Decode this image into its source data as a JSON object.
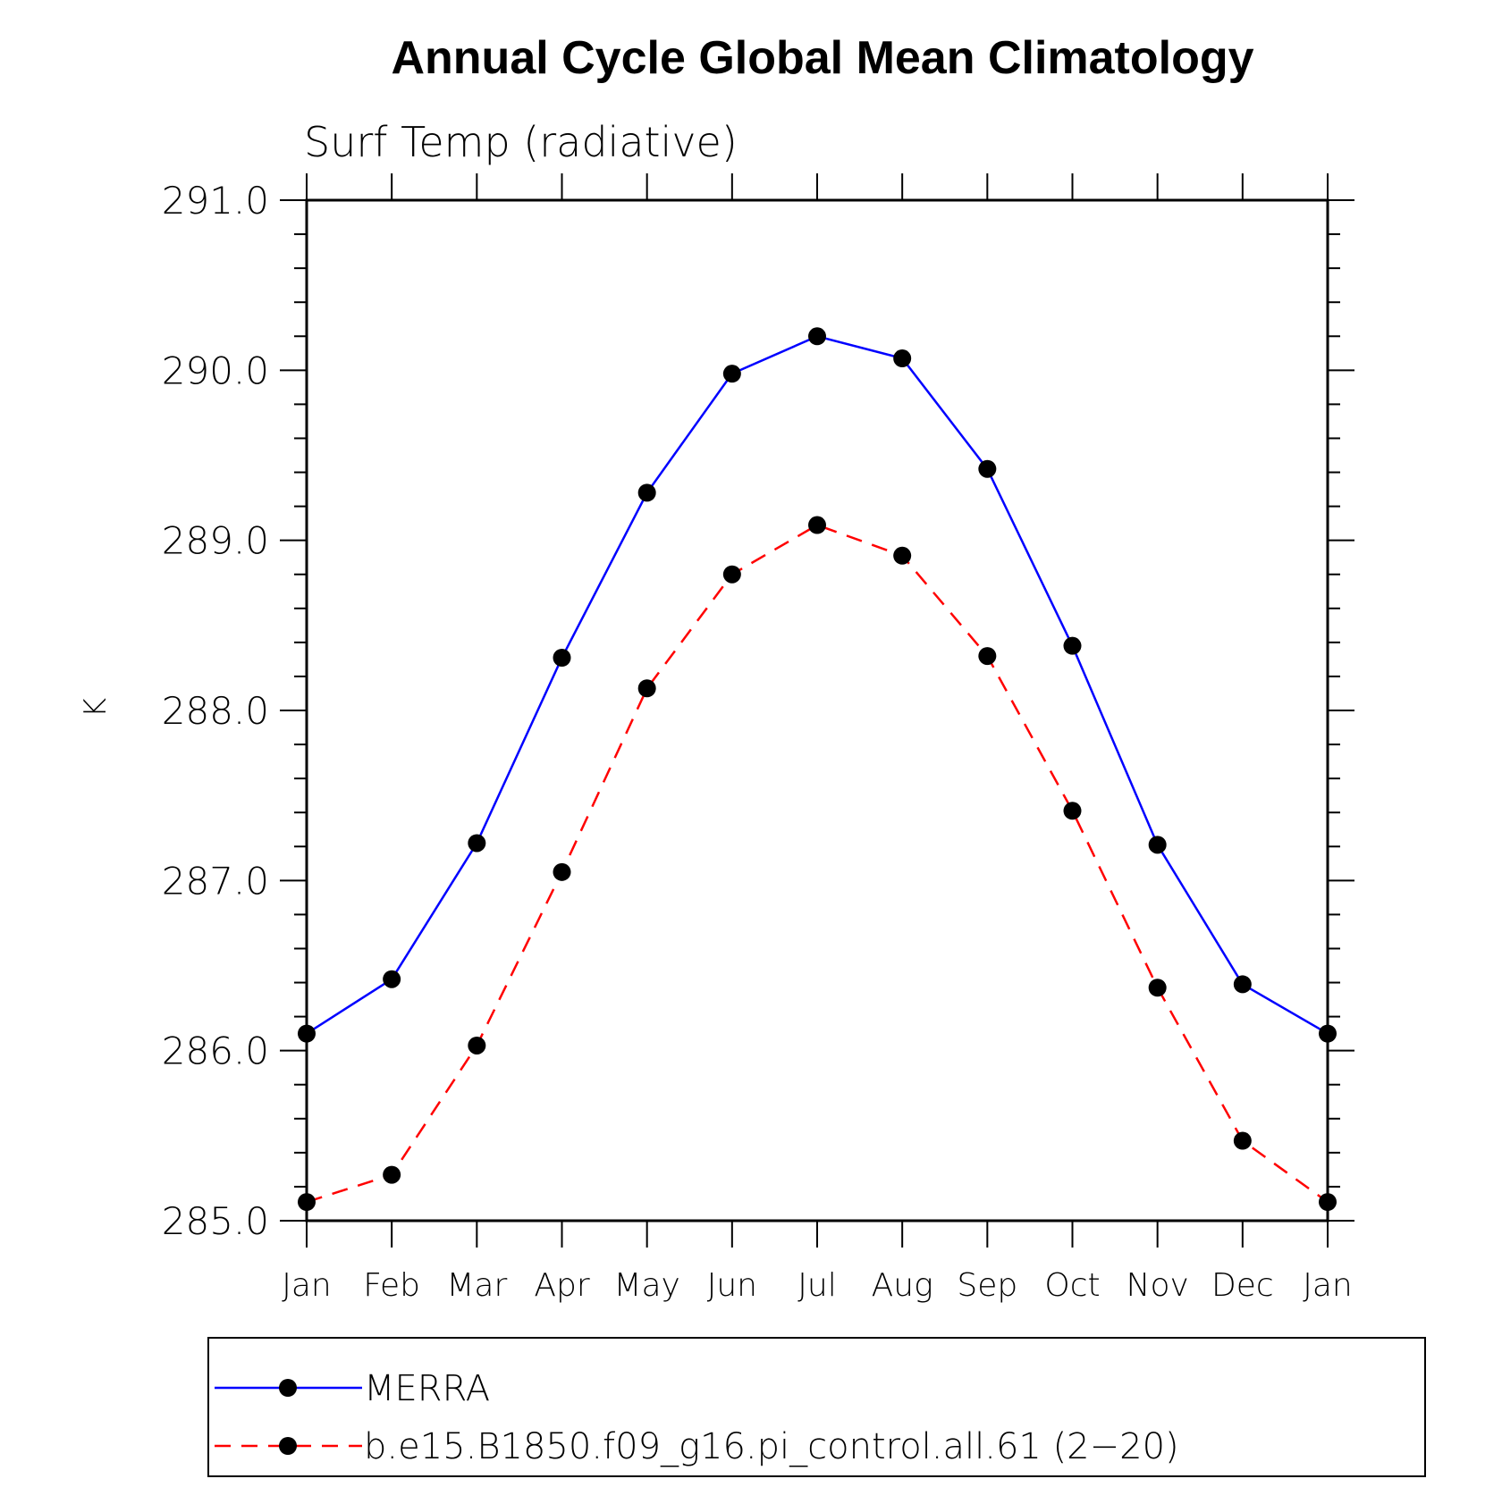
{
  "chart_data": {
    "type": "line",
    "title": "Annual Cycle Global Mean Climatology",
    "subtitle": "Surf Temp (radiative)",
    "ylabel": "K",
    "xlabel": "",
    "categories": [
      "Jan",
      "Feb",
      "Mar",
      "Apr",
      "May",
      "Jun",
      "Jul",
      "Aug",
      "Sep",
      "Oct",
      "Nov",
      "Dec",
      "Jan"
    ],
    "ylim": [
      285.0,
      291.0
    ],
    "yticks": [
      "285.0",
      "286.0",
      "287.0",
      "288.0",
      "289.0",
      "290.0",
      "291.0"
    ],
    "grid": false,
    "legend_position": "bottom",
    "series": [
      {
        "name": "MERRA",
        "color": "#0000ff",
        "line_style": "solid",
        "marker": "filled-circle",
        "values": [
          286.1,
          286.42,
          287.22,
          288.31,
          289.28,
          289.98,
          290.2,
          290.07,
          289.42,
          288.38,
          287.21,
          286.39,
          286.1
        ]
      },
      {
        "name": "b.e15.B1850.f09_g16.pi_control.all.61 (2−20)",
        "color": "#ff0000",
        "line_style": "dashed",
        "marker": "filled-circle",
        "values": [
          285.11,
          285.27,
          286.03,
          287.05,
          288.13,
          288.8,
          289.09,
          288.91,
          288.32,
          287.41,
          286.37,
          285.47,
          285.11
        ]
      }
    ]
  }
}
